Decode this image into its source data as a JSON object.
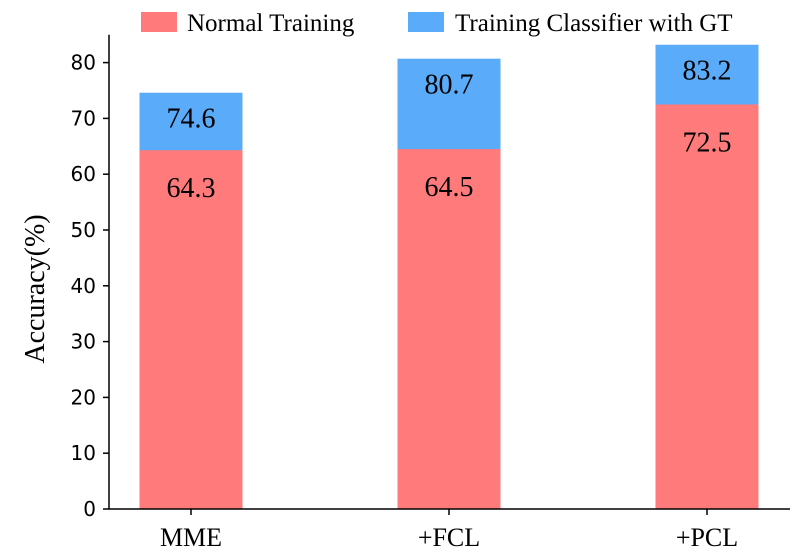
{
  "chart_data": {
    "type": "bar",
    "stacked_overlay": true,
    "categories": [
      "MME",
      "+FCL",
      "+PCL"
    ],
    "series": [
      {
        "name": "Normal Training",
        "values": [
          64.3,
          64.5,
          72.5
        ],
        "labels": [
          "64.3",
          "64.5",
          "72.5"
        ],
        "color": "#ff7b7b"
      },
      {
        "name": "Training Classifier with GT",
        "values": [
          74.6,
          80.7,
          83.2
        ],
        "labels": [
          "74.6",
          "80.7",
          "83.2"
        ],
        "color": "#5aabfa"
      }
    ],
    "title": "",
    "xlabel": "",
    "ylabel": "Accuracy(%)",
    "ylim": [
      0,
      85
    ],
    "yticks": [
      0,
      10,
      20,
      30,
      40,
      50,
      60,
      70,
      80
    ],
    "ytick_labels": [
      "0",
      "10",
      "20",
      "30",
      "40",
      "50",
      "60",
      "70",
      "80"
    ],
    "grid": false,
    "legend_position": "top"
  }
}
